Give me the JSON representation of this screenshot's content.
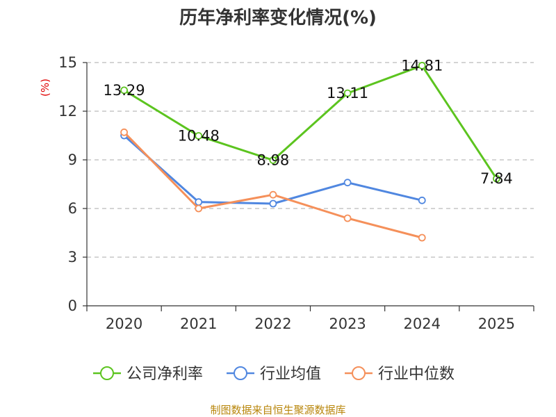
{
  "chart_data": {
    "type": "line",
    "title": "历年净利率变化情况(%)",
    "ylabel": "(%)",
    "xlabel": "",
    "categories": [
      "2020",
      "2021",
      "2022",
      "2023",
      "2024",
      "2025"
    ],
    "ylim": [
      0,
      15
    ],
    "yticks": [
      0,
      3,
      6,
      9,
      12,
      15
    ],
    "grid": true,
    "legend_position": "bottom",
    "series": [
      {
        "name": "公司净利率",
        "color": "#5cc41f",
        "values": [
          13.29,
          10.48,
          8.98,
          13.11,
          14.81,
          7.84
        ],
        "labels": [
          "13.29",
          "10.48",
          "8.98",
          "13.11",
          "14.81",
          "7.84"
        ]
      },
      {
        "name": "行业均值",
        "color": "#5087e0",
        "values": [
          10.5,
          6.4,
          6.3,
          7.6,
          6.5,
          null
        ]
      },
      {
        "name": "行业中位数",
        "color": "#f5905a",
        "values": [
          10.7,
          6.0,
          6.85,
          5.4,
          4.2,
          null
        ]
      }
    ],
    "source": "制图数据来自恒生聚源数据库"
  }
}
